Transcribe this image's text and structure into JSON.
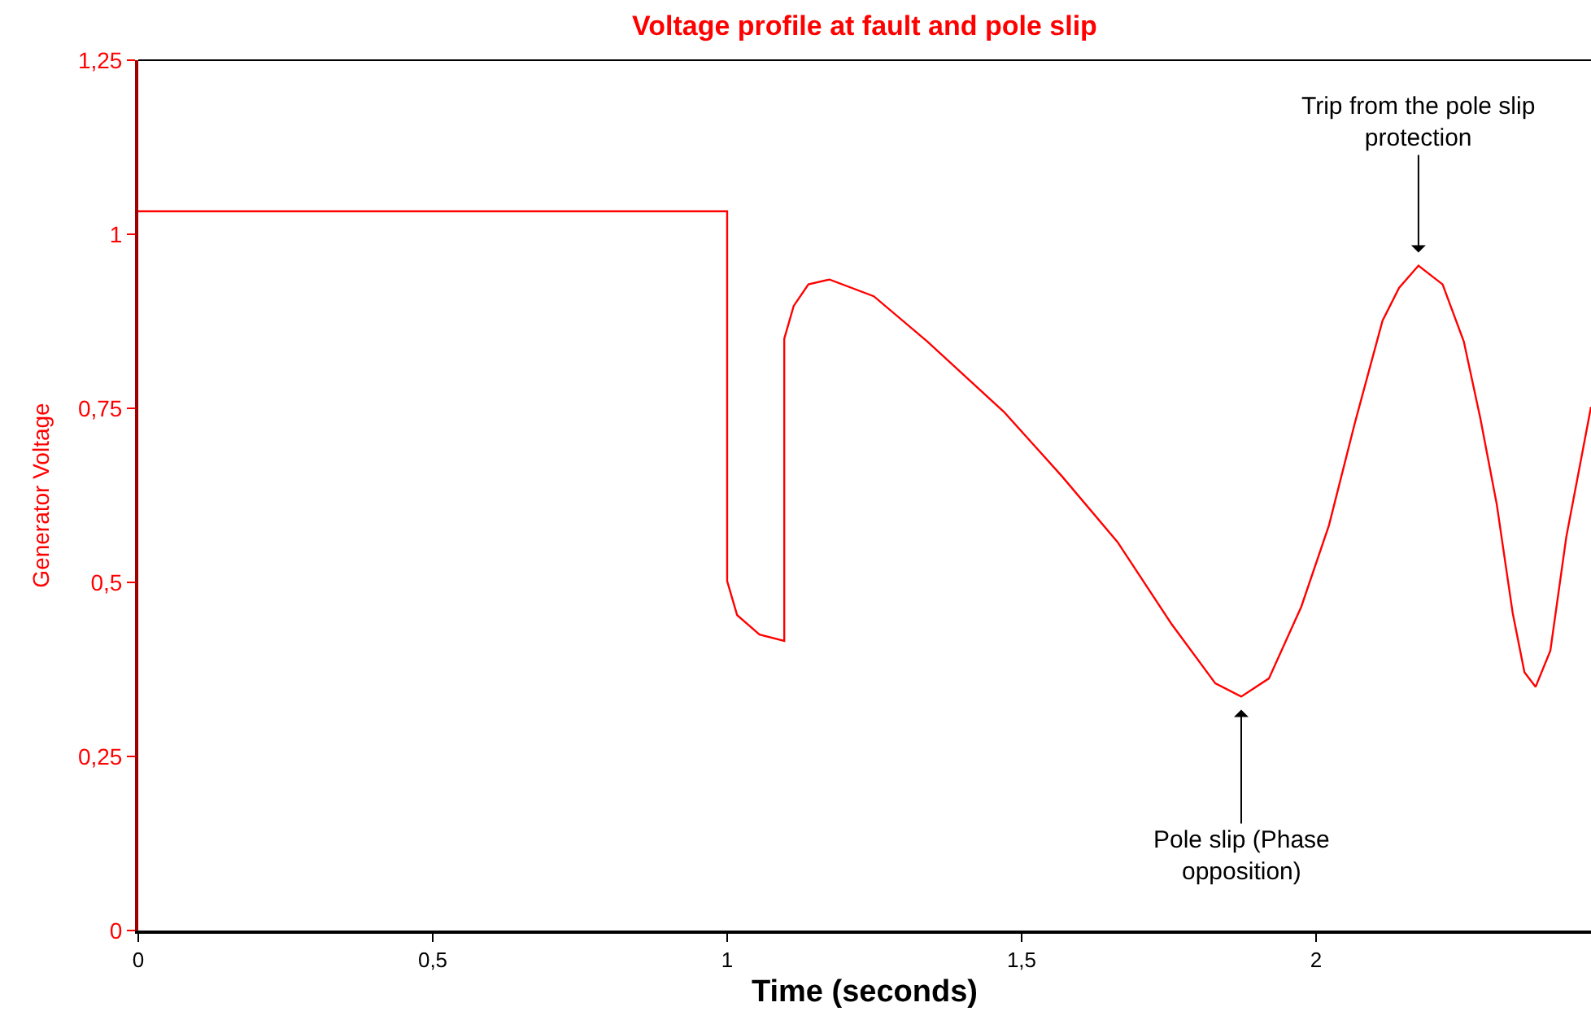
{
  "chart_data": {
    "type": "line",
    "title": "Voltage profile at fault and pole slip",
    "xlabel": "Time (seconds)",
    "ylabel": "Generator Voltage",
    "x": [
      0,
      1,
      1,
      1.017,
      1.055,
      1.097,
      1.097,
      1.113,
      1.138,
      1.174,
      1.249,
      1.34,
      1.47,
      1.569,
      1.663,
      1.754,
      1.829,
      1.873,
      1.92,
      1.975,
      2.022,
      2.066,
      2.113,
      2.141,
      2.174,
      2.215,
      2.251,
      2.279,
      2.307,
      2.334,
      2.354,
      2.373,
      2.398,
      2.425,
      2.467
    ],
    "series": [
      {
        "color": "#ff0000",
        "values": [
          1.033,
          1.033,
          0.502,
          0.453,
          0.425,
          0.416,
          0.85,
          0.897,
          0.928,
          0.935,
          0.911,
          0.846,
          0.745,
          0.652,
          0.558,
          0.441,
          0.355,
          0.336,
          0.362,
          0.465,
          0.582,
          0.729,
          0.876,
          0.923,
          0.955,
          0.928,
          0.846,
          0.736,
          0.612,
          0.456,
          0.371,
          0.35,
          0.402,
          0.565,
          0.752
        ]
      }
    ],
    "xlim": [
      0,
      2.467
    ],
    "ylim": [
      0,
      1.25
    ],
    "xticks": [
      0,
      {
        "value": 0.5,
        "label": "0,5"
      },
      1,
      {
        "value": 1.5,
        "label": "1,5"
      },
      2
    ],
    "yticks": [
      0,
      {
        "value": 0.25,
        "label": "0,25"
      },
      {
        "value": 0.5,
        "label": "0,5"
      },
      {
        "value": 0.75,
        "label": "0,75"
      },
      1,
      {
        "value": 1.25,
        "label": "1,25"
      }
    ],
    "grid": false,
    "marker": "none",
    "line_style": "solid",
    "annotations": [
      {
        "text": "Trip from the pole slip protection",
        "x": 2.174,
        "y": 0.955
      },
      {
        "text": "Pole slip (Phase opposition)",
        "x": 1.873,
        "y": 0.336
      }
    ]
  }
}
